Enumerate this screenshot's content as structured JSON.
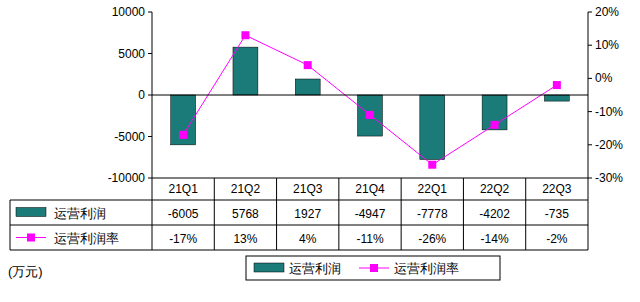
{
  "chart_data": {
    "type": "bar",
    "categories": [
      "21Q1",
      "21Q2",
      "21Q3",
      "21Q4",
      "22Q1",
      "22Q2",
      "22Q3"
    ],
    "series": [
      {
        "name": "运营利润",
        "type": "bar",
        "color": "#1b7b78",
        "values": [
          -6005,
          5768,
          1927,
          -4947,
          -7778,
          -4202,
          -735
        ]
      },
      {
        "name": "运营利润率",
        "type": "line",
        "color": "#ff00ff",
        "marker": "square",
        "axis": "y2",
        "values": [
          -17,
          13,
          4,
          -11,
          -26,
          -14,
          -2
        ],
        "value_labels": [
          "-17%",
          "13%",
          "4%",
          "-11%",
          "-26%",
          "-14%",
          "-2%"
        ]
      }
    ],
    "ylim": [
      -10000,
      10000
    ],
    "yticks": [
      -10000,
      -5000,
      0,
      5000,
      10000
    ],
    "y2lim": [
      -30,
      20
    ],
    "y2ticks": [
      {
        "value": -30,
        "label": "-30%"
      },
      {
        "value": -20,
        "label": "-20%"
      },
      {
        "value": -10,
        "label": "-10%"
      },
      {
        "value": 0,
        "label": "0%"
      },
      {
        "value": 10,
        "label": "10%"
      },
      {
        "value": 20,
        "label": "20%"
      }
    ],
    "annotations": [
      "(万元)"
    ],
    "legend": "bottom",
    "grid": false
  }
}
